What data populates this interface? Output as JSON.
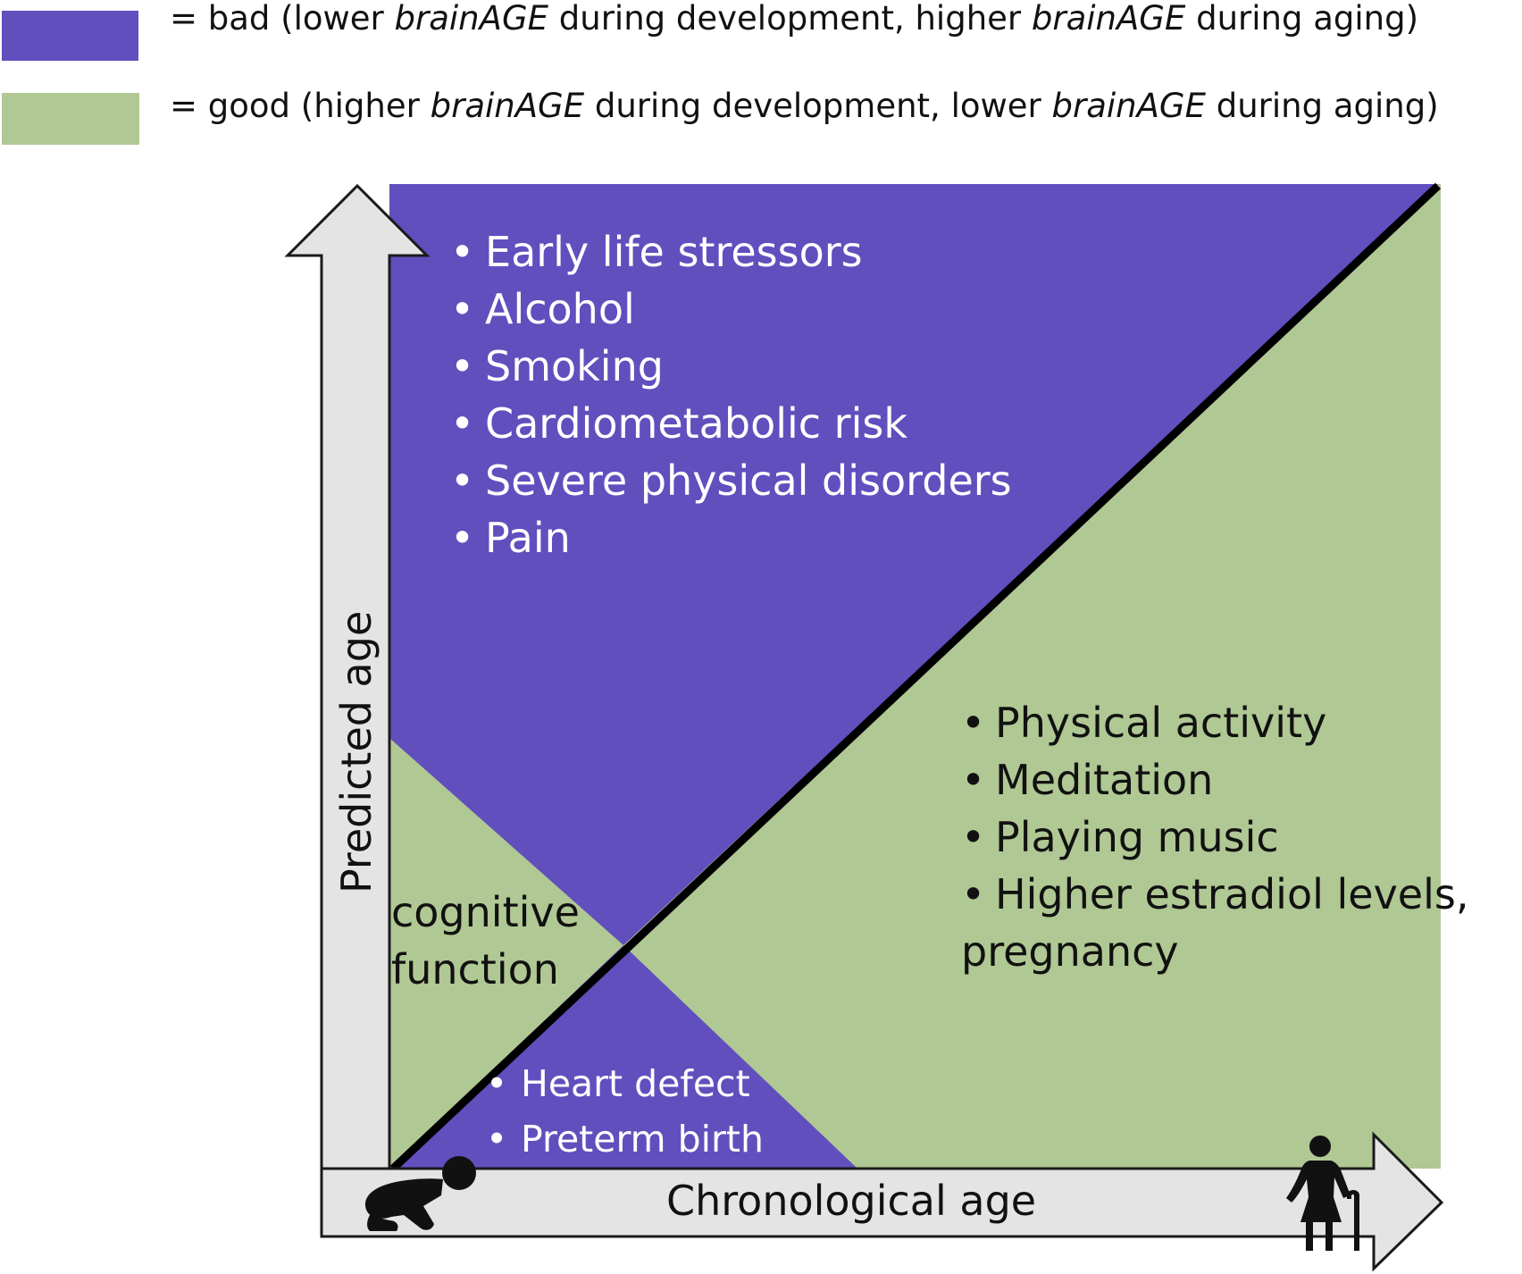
{
  "colors": {
    "bad": "#614FBE",
    "good": "#B0C894",
    "axis_fill": "#E4E4E4",
    "line": "#000000"
  },
  "legend": {
    "bad": {
      "prefix": "= bad (lower ",
      "term1": "brainAGE",
      "middle": " during development, higher ",
      "term2": "brainAGE",
      "suffix": " during aging)"
    },
    "good": {
      "prefix": "= good (higher ",
      "term1": "brainAGE",
      "middle": " during development, lower ",
      "term2": "brainAGE",
      "suffix": " during aging)"
    }
  },
  "aging_bad": {
    "items": [
      "Early life stressors",
      "Alcohol",
      "Smoking",
      "Cardiometabolic risk",
      "Severe physical disorders",
      "Pain"
    ]
  },
  "aging_good": {
    "items": [
      "Physical activity",
      "Meditation",
      "Playing music",
      "Higher estradiol levels,"
    ],
    "continuation": "pregnancy"
  },
  "development_good": {
    "lines": [
      "cognitive",
      "function"
    ]
  },
  "development_bad": {
    "items": [
      "Heart defect",
      "Preterm birth"
    ]
  },
  "bullet": "•",
  "axes": {
    "x_label": "Chronological age",
    "y_label": "Predicted age"
  },
  "icons": {
    "infant": "crawling-baby-icon",
    "elderly": "elderly-person-with-cane-icon"
  }
}
